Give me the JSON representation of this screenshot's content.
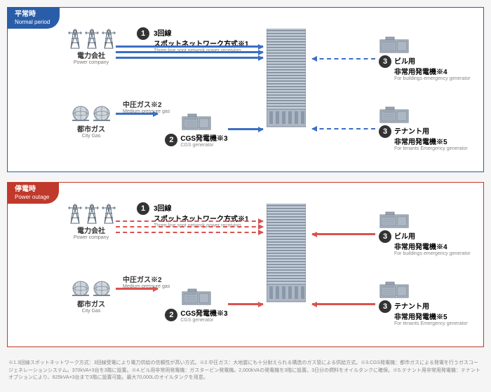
{
  "panels": [
    {
      "id": "normal",
      "tag_jp": "平常時",
      "tag_en": "Normal period",
      "border_color": "#2a5da8",
      "tag_bg": "#2a5da8",
      "arrow_color": "#3b6fc4"
    },
    {
      "id": "outage",
      "tag_jp": "停電時",
      "tag_en": "Power outage",
      "border_color": "#c0392b",
      "tag_bg": "#c0392b",
      "arrow_color": "#d9534f"
    }
  ],
  "sources": {
    "power": {
      "jp": "電力会社",
      "en": "Power company"
    },
    "gas": {
      "jp": "都市ガス",
      "en": "City Gas"
    },
    "midgas": {
      "jp": "中圧ガス※2",
      "en": "Medium pressure gas"
    }
  },
  "items": {
    "1": {
      "jp1": "3回線",
      "jp2": "スポットネットワーク方式※1",
      "en": "Three-line spot network power receiving"
    },
    "2": {
      "jp": "CGS発電機※3",
      "en": "CGS generator"
    },
    "3a": {
      "jp1": "ビル用",
      "jp2": "非常用発電機※4",
      "en": "For buildings emergency generator"
    },
    "3b": {
      "jp1": "テナント用",
      "jp2": "非常用発電機※5",
      "en": "For tenants Emergency generator"
    }
  },
  "footnotes": "※1.3回線スポットネットワーク方式：3回線受電により電力供給の信頼性が高い方式。※2.中圧ガス：大地震にも十分耐えられる構造のガス管による供給方式。※3.CGS発電機：都市ガスによる発電を行うガスコージェネレーションシステム。370kVA×3台を3階に設置。※4.ビル用非常用発電機：ガスタービン発電機。2,000kVAの発電機を3階に設置。3日分の燃料をオイルタンクに確保。※5.テナント用非常用発電機：テナントオプションにより、625kVA×3台まで3階に設置可能。最大70,000Lのオイルタンクを用意。",
  "colors": {
    "steel": "#6b7a8a",
    "bldg_light": "#b8c4d4",
    "bldg_dark": "#8a98aa",
    "gen_body": "#9aa6b3",
    "circle": "#333333"
  }
}
